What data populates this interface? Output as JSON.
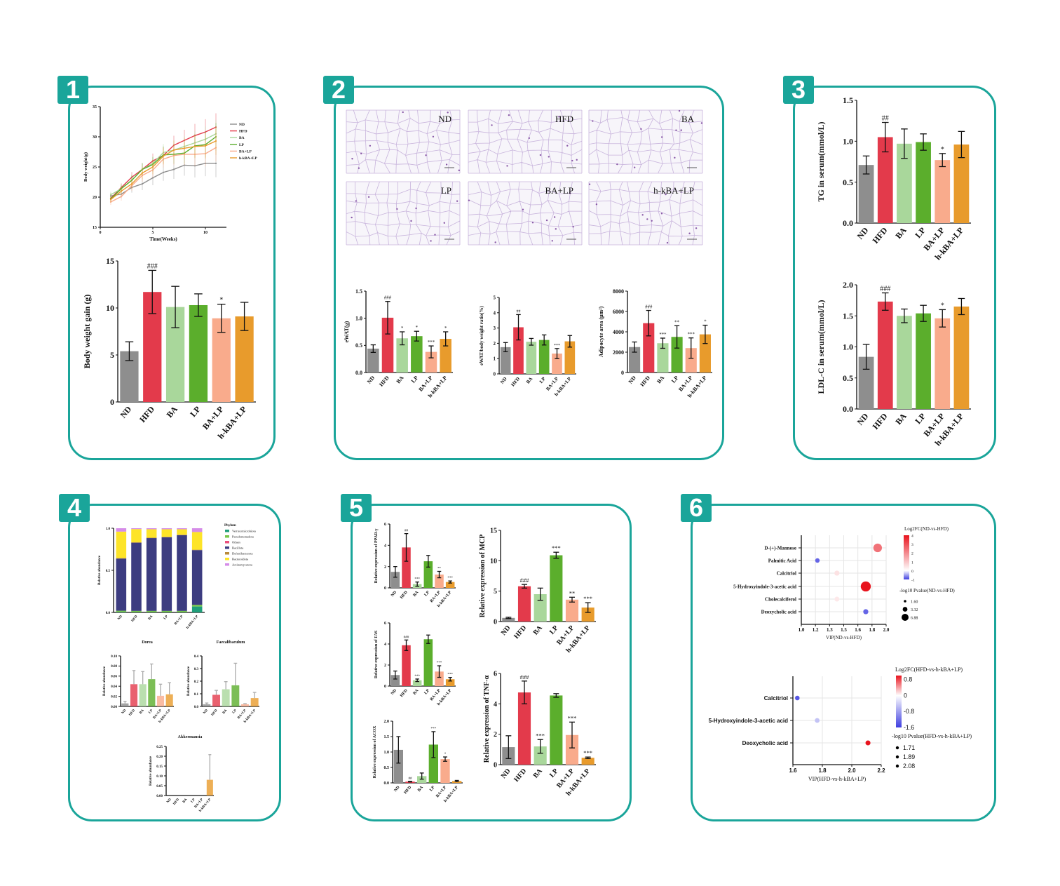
{
  "panels": [
    {
      "badge": "1"
    },
    {
      "badge": "2"
    },
    {
      "badge": "3"
    },
    {
      "badge": "4"
    },
    {
      "badge": "5"
    },
    {
      "badge": "6"
    }
  ],
  "group_colors": {
    "ND": "#8e8e8e",
    "HFD": "#e33a4b",
    "BA": "#a9d79b",
    "LP": "#5bae2c",
    "BA+LP": "#f9ab8c",
    "h-kBA+LP": "#e89b2c"
  },
  "accent_color": "#1aa59a",
  "histology": {
    "labels": [
      "ND",
      "HFD",
      "BA",
      "LP",
      "BA+LP",
      "h-kBA+LP"
    ]
  },
  "chart_data": [
    {
      "type": "line",
      "xlabel": "Time(Weeks)",
      "ylabel": "Body weight(g)",
      "xlim": [
        0,
        12
      ],
      "xticks": [
        "0",
        "5",
        "10"
      ],
      "ylim": [
        15,
        35
      ],
      "yticks": [
        "15",
        "20",
        "25",
        "30",
        "35"
      ],
      "x": [
        1,
        2,
        3,
        4,
        5,
        6,
        7,
        8,
        9,
        10,
        11
      ],
      "series": [
        {
          "name": "ND",
          "color": "#8e8e8e",
          "values": [
            20.2,
            20.5,
            21.6,
            22.2,
            23.2,
            24.1,
            24.6,
            25.3,
            25.2,
            25.6,
            25.6
          ]
        },
        {
          "name": "HFD",
          "color": "#e33a4b",
          "values": [
            19.8,
            21.6,
            23.3,
            24.6,
            26.0,
            26.9,
            28.6,
            29.4,
            30.2,
            30.8,
            31.6
          ]
        },
        {
          "name": "BA",
          "color": "#a9d79b",
          "values": [
            20.4,
            21.4,
            22.8,
            24.6,
            25.6,
            27.4,
            27.8,
            28.4,
            29.0,
            29.6,
            30.5
          ]
        },
        {
          "name": "LP",
          "color": "#5bae2c",
          "values": [
            19.7,
            21.4,
            22.8,
            24.6,
            25.4,
            27.0,
            27.1,
            27.3,
            28.5,
            28.7,
            30.0
          ]
        },
        {
          "name": "BA+LP",
          "color": "#f9ab8c",
          "values": [
            19.2,
            20.1,
            21.9,
            23.6,
            24.5,
            26.3,
            26.9,
            27.1,
            27.1,
            27.2,
            28.2
          ]
        },
        {
          "name": "h-kBA+LP",
          "color": "#e89b2c",
          "values": [
            19.6,
            21.0,
            22.2,
            24.0,
            25.0,
            26.8,
            27.8,
            28.1,
            28.4,
            28.5,
            29.3
          ]
        }
      ]
    },
    {
      "type": "bar",
      "ylabel": "Body weight gain (g)",
      "categories": [
        "ND",
        "HFD",
        "BA",
        "LP",
        "BA+LP",
        "h-kBA+LP"
      ],
      "values": [
        5.4,
        11.7,
        10.1,
        10.3,
        8.9,
        9.1
      ],
      "errors": [
        1.0,
        2.3,
        2.2,
        1.2,
        1.5,
        1.5
      ],
      "annotations": [
        "",
        "###",
        "",
        "",
        "*",
        ""
      ],
      "ylim": [
        0,
        15
      ],
      "yticks": [
        "0",
        "5",
        "10",
        "15"
      ]
    },
    {
      "type": "bar",
      "ylabel": "eWAT(g)",
      "categories": [
        "ND",
        "HFD",
        "BA",
        "LP",
        "BA+LP",
        "h-kBA+LP"
      ],
      "values": [
        0.44,
        1.01,
        0.63,
        0.67,
        0.38,
        0.62
      ],
      "errors": [
        0.07,
        0.3,
        0.12,
        0.09,
        0.11,
        0.13
      ],
      "annotations": [
        "",
        "###",
        "*",
        "*",
        "***",
        "*"
      ],
      "ylim": [
        0,
        1.5
      ],
      "yticks": [
        "0.0",
        "0.5",
        "1.0",
        "1.5"
      ]
    },
    {
      "type": "bar",
      "ylabel": "eWAT/body weight ratio(%)",
      "categories": [
        "ND",
        "HFD",
        "BA",
        "LP",
        "BA+LP",
        "h-kBA+LP"
      ],
      "values": [
        1.75,
        3.05,
        2.1,
        2.22,
        1.33,
        2.13
      ],
      "errors": [
        0.3,
        0.83,
        0.22,
        0.33,
        0.33,
        0.38
      ],
      "annotations": [
        "",
        "##",
        "",
        "",
        "***",
        ""
      ],
      "ylim": [
        0,
        5
      ],
      "yticks": [
        "0",
        "1",
        "2",
        "3",
        "4",
        "5"
      ]
    },
    {
      "type": "bar",
      "ylabel": "Adipocyte area (μm²)",
      "categories": [
        "ND",
        "HFD",
        "BA",
        "LP",
        "BA+LP",
        "h-kBA+LP"
      ],
      "values": [
        2500,
        4850,
        2880,
        3500,
        2400,
        3750
      ],
      "errors": [
        500,
        1250,
        500,
        1100,
        1000,
        900
      ],
      "annotations": [
        "",
        "###",
        "***",
        "**",
        "***",
        "*"
      ],
      "ylim": [
        0,
        8000
      ],
      "yticks": [
        "0",
        "2000",
        "4000",
        "6000",
        "8000"
      ]
    },
    {
      "type": "bar",
      "ylabel": "TG in serum(mmol/L)",
      "categories": [
        "ND",
        "HFD",
        "BA",
        "LP",
        "BA+LP",
        "h-kBA+LP"
      ],
      "values": [
        0.71,
        1.05,
        0.97,
        0.99,
        0.77,
        0.96
      ],
      "errors": [
        0.11,
        0.18,
        0.18,
        0.1,
        0.08,
        0.16
      ],
      "annotations": [
        "",
        "##",
        "",
        "",
        "*",
        ""
      ],
      "ylim": [
        0,
        1.5
      ],
      "yticks": [
        "0.0",
        "0.5",
        "1.0",
        "1.5"
      ]
    },
    {
      "type": "bar",
      "ylabel": "LDL-C in serum(mmol/L)",
      "categories": [
        "ND",
        "HFD",
        "BA",
        "LP",
        "BA+LP",
        "h-kBA+LP"
      ],
      "values": [
        0.84,
        1.73,
        1.5,
        1.54,
        1.46,
        1.65
      ],
      "errors": [
        0.2,
        0.14,
        0.11,
        0.13,
        0.14,
        0.13
      ],
      "annotations": [
        "",
        "###",
        "",
        "",
        "*",
        ""
      ],
      "ylim": [
        0,
        2.0
      ],
      "yticks": [
        "0.0",
        "0.5",
        "1.0",
        "1.5",
        "2.0"
      ]
    },
    {
      "type": "bar",
      "stacked": true,
      "ylabel": "Relative abundance",
      "legend_title": "Phylum",
      "categories": [
        "ND",
        "HFD",
        "BA",
        "LP",
        "BA+LP",
        "h-kBA+LP"
      ],
      "ylim": [
        0,
        1
      ],
      "yticks": [
        "0.0",
        "0.5",
        "1.0"
      ],
      "series": [
        {
          "name": "Verrucomicrobiota",
          "color": "#1f9e7a",
          "values": [
            0.005,
            0.003,
            0.003,
            0.003,
            0.003,
            0.07
          ]
        },
        {
          "name": "Pseudomonadota",
          "color": "#79c74a",
          "values": [
            0.015,
            0.015,
            0.015,
            0.015,
            0.015,
            0.02
          ]
        },
        {
          "name": "Others",
          "color": "#ea4f7d",
          "values": [
            0,
            0,
            0,
            0,
            0,
            0
          ]
        },
        {
          "name": "Bacillota",
          "color": "#3c3c80",
          "values": [
            0.62,
            0.81,
            0.865,
            0.875,
            0.9,
            0.65
          ]
        },
        {
          "name": "Deferribacterota",
          "color": "#b98a3a",
          "values": [
            0.005,
            0.005,
            0.005,
            0.005,
            0.005,
            0.005
          ]
        },
        {
          "name": "Bacteroidota",
          "color": "#fde428",
          "values": [
            0.315,
            0.157,
            0.1,
            0.09,
            0.065,
            0.21
          ]
        },
        {
          "name": "Actinomycetota",
          "color": "#d58ce8",
          "values": [
            0.04,
            0.01,
            0.012,
            0.012,
            0.012,
            0.045
          ]
        }
      ]
    },
    {
      "type": "bar",
      "title": "Dorea",
      "ylabel": "Relative abundance",
      "error_direction": "up",
      "categories": [
        "ND",
        "HFD",
        "BA",
        "LP",
        "BA+LP",
        "h-kBA+LP"
      ],
      "values": [
        0.006,
        0.044,
        0.044,
        0.054,
        0.021,
        0.024
      ],
      "errors": [
        0.004,
        0.027,
        0.025,
        0.03,
        0.023,
        0.023
      ],
      "ylim": [
        0,
        0.1
      ],
      "yticks": [
        "0.00",
        "0.02",
        "0.04",
        "0.06",
        "0.08",
        "0.10"
      ]
    },
    {
      "type": "bar",
      "title": "Faecalibaculum",
      "ylabel": "Relative abundance",
      "error_direction": "up",
      "categories": [
        "ND",
        "HFD",
        "BA",
        "LP",
        "BA+LP",
        "h-kBA+LP"
      ],
      "values": [
        0.017,
        0.092,
        0.136,
        0.167,
        0.017,
        0.066
      ],
      "errors": [
        0.01,
        0.035,
        0.06,
        0.175,
        0.005,
        0.045
      ],
      "ylim": [
        0,
        0.4
      ],
      "yticks": [
        "0.0",
        "0.1",
        "0.2",
        "0.3",
        "0.4"
      ]
    },
    {
      "type": "bar",
      "title": "Akkermansia",
      "ylabel": "Relative abundance",
      "error_direction": "up",
      "categories": [
        "ND",
        "HFD",
        "BA",
        "LP",
        "BA+LP",
        "h-kBA+LP"
      ],
      "values": [
        0,
        0,
        0,
        0,
        0,
        0.08
      ],
      "errors": [
        0,
        0,
        0,
        0,
        0,
        0.128
      ],
      "ylim": [
        0,
        0.25
      ],
      "yticks": [
        "0.00",
        "0.05",
        "0.10",
        "0.15",
        "0.20",
        "0.25"
      ]
    },
    {
      "type": "bar",
      "ylabel": "Relative expression of PPAR-γ",
      "categories": [
        "ND",
        "HFD",
        "BA",
        "LP",
        "BA+LP",
        "h-kBA+LP"
      ],
      "values": [
        1.5,
        3.8,
        0.35,
        2.5,
        1.25,
        0.55
      ],
      "errors": [
        0.5,
        1.3,
        0.2,
        0.55,
        0.3,
        0.1
      ],
      "annotations": [
        "",
        "##",
        "***",
        "",
        "**",
        "***"
      ],
      "ylim": [
        0,
        6
      ],
      "yticks": [
        "0",
        "2",
        "4",
        "6"
      ]
    },
    {
      "type": "bar",
      "ylabel": "Relative expression of FAS",
      "categories": [
        "ND",
        "HFD",
        "BA",
        "LP",
        "BA+LP",
        "h-kBA+LP"
      ],
      "values": [
        1.05,
        3.88,
        0.55,
        4.45,
        1.38,
        0.65
      ],
      "errors": [
        0.38,
        0.5,
        0.12,
        0.4,
        0.55,
        0.17
      ],
      "annotations": [
        "",
        "###",
        "***",
        "",
        "***",
        "***"
      ],
      "ylim": [
        0,
        6
      ],
      "yticks": [
        "0",
        "2",
        "4",
        "6"
      ]
    },
    {
      "type": "bar",
      "ylabel": "Relative expression of ACOX",
      "categories": [
        "ND",
        "HFD",
        "BA",
        "LP",
        "BA+LP",
        "h-kBA+LP"
      ],
      "values": [
        1.07,
        0.04,
        0.22,
        1.24,
        0.77,
        0.06
      ],
      "errors": [
        0.43,
        0.01,
        0.1,
        0.42,
        0.07,
        0.02
      ],
      "annotations": [
        "",
        "##",
        "",
        "***",
        "*",
        ""
      ],
      "ylim": [
        0,
        2
      ],
      "yticks": [
        "0.0",
        "0.5",
        "1.0",
        "1.5",
        "2.0"
      ]
    },
    {
      "type": "bar",
      "ylabel": "Relative expression of MCP",
      "categories": [
        "ND",
        "HFD",
        "BA",
        "LP",
        "BA+LP",
        "h-kBA+LP"
      ],
      "values": [
        0.6,
        5.8,
        4.5,
        10.9,
        3.6,
        2.3
      ],
      "errors": [
        0.1,
        0.3,
        1.0,
        0.5,
        0.4,
        0.8
      ],
      "annotations": [
        "",
        "###",
        "",
        "***",
        "**",
        "***"
      ],
      "ylim": [
        0,
        15
      ],
      "yticks": [
        "0",
        "5",
        "10",
        "15"
      ]
    },
    {
      "type": "bar",
      "ylabel": "Relative expression of TNF-α",
      "categories": [
        "ND",
        "HFD",
        "BA",
        "LP",
        "BA+LP",
        "h-kBA+LP"
      ],
      "values": [
        1.15,
        4.75,
        1.2,
        4.55,
        1.95,
        0.45
      ],
      "errors": [
        0.75,
        0.75,
        0.45,
        0.12,
        0.85,
        0.05
      ],
      "annotations": [
        "",
        "###",
        "***",
        "",
        "***",
        "***"
      ],
      "ylim": [
        0,
        6
      ],
      "yticks": [
        "0",
        "2",
        "4",
        "6"
      ]
    },
    {
      "type": "scatter",
      "xlabel": "VIP(ND-vs-HFD)",
      "xlim": [
        1.0,
        2.0
      ],
      "xticks": [
        "1.0",
        "1.2",
        "1.3",
        "1.5",
        "1.6",
        "1.8",
        "2.0"
      ],
      "categories": [
        "D-(+)-Mannose",
        "Palmitic Acid",
        "Calcitriol",
        "5-Hydroxyindole-3-acetic acid",
        "Cholecalciferol",
        "Deoxycholic acid"
      ],
      "points": [
        {
          "vip": 1.9,
          "log2fc": 2.4,
          "neg_log10_p": 5.5
        },
        {
          "vip": 1.19,
          "log2fc": -0.8,
          "neg_log10_p": 1.6
        },
        {
          "vip": 1.42,
          "log2fc": 0.5,
          "neg_log10_p": 2.2
        },
        {
          "vip": 1.76,
          "log2fc": 4.0,
          "neg_log10_p": 6.88
        },
        {
          "vip": 1.42,
          "log2fc": 0.4,
          "neg_log10_p": 2.0
        },
        {
          "vip": 1.76,
          "log2fc": -0.8,
          "neg_log10_p": 2.2
        }
      ],
      "colorbar": {
        "title": "Log2FC(ND-vs-HFD)",
        "range": [
          -1,
          4
        ],
        "ticks": [
          "4",
          "3",
          "2",
          "1",
          "0",
          "-1"
        ]
      },
      "size_legend": {
        "title": "-log10 Pvalue(ND-vs-HFD)",
        "values": [
          "1.60",
          "3.32",
          "6.88"
        ]
      }
    },
    {
      "type": "scatter",
      "xlabel": "VIP(HFD-vs-h-kBA+LP)",
      "xlim": [
        1.6,
        2.2
      ],
      "xticks": [
        "1.6",
        "1.8",
        "2.0",
        "2.2"
      ],
      "categories": [
        "Calcitriol",
        "5-Hydroxyindole-3-acetic acid",
        "Deoxycholic acid"
      ],
      "points": [
        {
          "vip": 1.63,
          "log2fc": -1.4,
          "neg_log10_p": 1.71
        },
        {
          "vip": 1.765,
          "log2fc": -0.5,
          "neg_log10_p": 1.89
        },
        {
          "vip": 2.11,
          "log2fc": 1.0,
          "neg_log10_p": 2.08
        }
      ],
      "colorbar": {
        "title": "Log2FC(HFD-vs-h-kBA+LP)",
        "range": [
          -1.6,
          1.0
        ],
        "ticks": [
          "0.8",
          "0",
          "-0.8",
          "-1.6"
        ]
      },
      "size_legend": {
        "title": "-log10 Pvalue(HFD-vs-h-kBA+LP)",
        "values": [
          "1.71",
          "1.89",
          "2.08"
        ]
      }
    }
  ]
}
